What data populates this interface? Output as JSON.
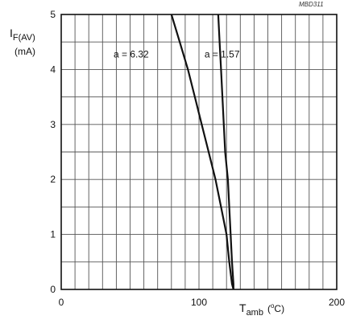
{
  "figure_ref": "MBD311",
  "chart_data": {
    "type": "line",
    "title": "",
    "xlabel": {
      "symbol": "T",
      "subscript": "amb",
      "unit": "(°C)",
      "unit_prefix": "(",
      "unit_sup": "o",
      "unit_suffix": "C)"
    },
    "ylabel": {
      "symbol": "I",
      "subscript": "F(AV)",
      "unit": "(mA)"
    },
    "xlim": [
      0,
      200
    ],
    "ylim": [
      0,
      5
    ],
    "x_ticks": [
      0,
      100,
      200
    ],
    "y_ticks": [
      0,
      1,
      2,
      3,
      4,
      5
    ],
    "x_minor_step": 10,
    "y_minor_step": 0.5,
    "grid": true,
    "series": [
      {
        "name": "a = 6.32",
        "x": [
          80,
          86,
          92,
          97,
          102,
          107,
          112,
          116,
          120,
          122,
          124,
          125
        ],
        "y": [
          5.0,
          4.5,
          4.0,
          3.5,
          3.0,
          2.5,
          2.0,
          1.5,
          1.0,
          0.5,
          0.1,
          0.0
        ]
      },
      {
        "name": "a = 1.57",
        "x": [
          114,
          115,
          116,
          117,
          118,
          119,
          121,
          122,
          123,
          124,
          125,
          125
        ],
        "y": [
          5.0,
          4.5,
          4.0,
          3.5,
          3.0,
          2.5,
          2.0,
          1.5,
          1.0,
          0.5,
          0.1,
          0.0
        ]
      }
    ]
  }
}
